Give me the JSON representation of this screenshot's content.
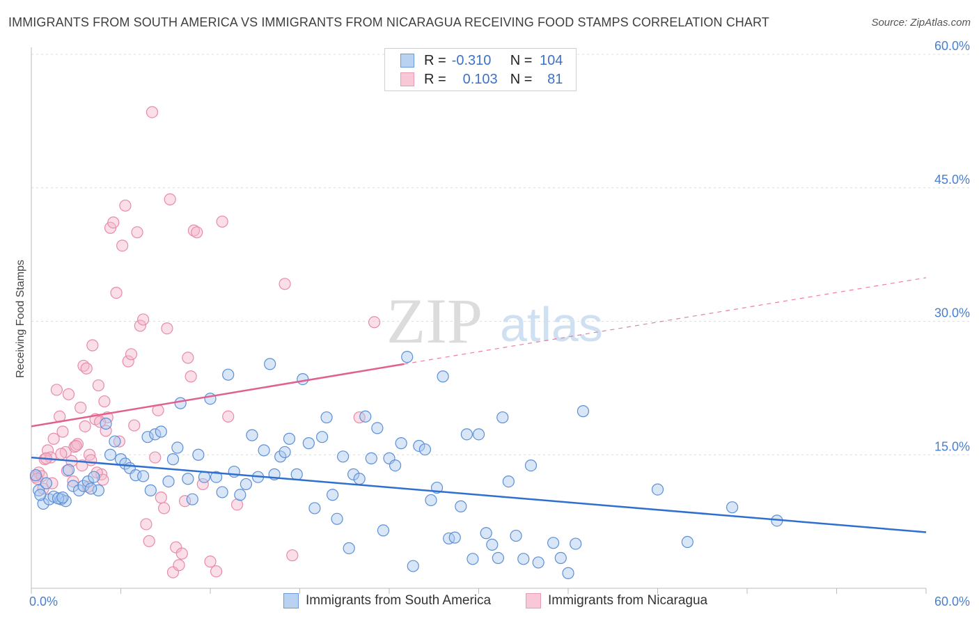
{
  "title": "IMMIGRANTS FROM SOUTH AMERICA VS IMMIGRANTS FROM NICARAGUA RECEIVING FOOD STAMPS CORRELATION CHART",
  "source": "Source: ZipAtlas.com",
  "watermark": {
    "zip": "ZIP",
    "atlas": "atlas"
  },
  "colors": {
    "blue_fill": "#a9c8ef",
    "blue_stroke": "#5b8fd6",
    "blue_line": "#2f6fcf",
    "pink_fill": "#f5b8cb",
    "pink_stroke": "#e88aa8",
    "pink_line": "#e0608e",
    "tick_text": "#4a7fcb",
    "grid": "#dcdcdc"
  },
  "legend": {
    "r_label": "R =",
    "n_label": "N =",
    "rows": [
      {
        "r": "-0.310",
        "n": "104",
        "color": "blue"
      },
      {
        "r": "0.103",
        "n": "81",
        "color": "pink"
      }
    ]
  },
  "chart_data": {
    "type": "scatter",
    "title": "IMMIGRANTS FROM SOUTH AMERICA VS IMMIGRANTS FROM NICARAGUA RECEIVING FOOD STAMPS CORRELATION CHART",
    "xlabel": "",
    "ylabel": "Receiving Food Stamps",
    "xlim": [
      0,
      60
    ],
    "ylim": [
      0,
      60
    ],
    "x_tick_labels": [
      "0.0%",
      "60.0%"
    ],
    "y_tick_labels": [
      "15.0%",
      "30.0%",
      "45.0%",
      "60.0%"
    ],
    "y_ticks": [
      15,
      30,
      45,
      60
    ],
    "grid": "horizontal dashed",
    "legend_placement": "bottom",
    "series": [
      {
        "name": "Immigrants from South America",
        "color": "blue",
        "trend": {
          "x": [
            0,
            60
          ],
          "y": [
            14.7,
            6.3
          ],
          "dashed_after": null
        },
        "points": [
          [
            0.5,
            11.0
          ],
          [
            0.8,
            9.5
          ],
          [
            1.2,
            10.0
          ],
          [
            1.5,
            10.3
          ],
          [
            2.0,
            10.0
          ],
          [
            2.3,
            9.8
          ],
          [
            2.5,
            13.3
          ],
          [
            2.8,
            11.5
          ],
          [
            3.2,
            11.0
          ],
          [
            3.5,
            11.5
          ],
          [
            3.8,
            12.0
          ],
          [
            4.2,
            12.5
          ],
          [
            4.5,
            11.0
          ],
          [
            5.0,
            18.5
          ],
          [
            5.3,
            15.0
          ],
          [
            5.6,
            16.5
          ],
          [
            6.0,
            14.5
          ],
          [
            6.3,
            14.0
          ],
          [
            6.6,
            13.5
          ],
          [
            7.0,
            12.7
          ],
          [
            7.5,
            12.6
          ],
          [
            7.8,
            17.0
          ],
          [
            8.0,
            11.0
          ],
          [
            8.3,
            17.3
          ],
          [
            8.7,
            17.6
          ],
          [
            9.2,
            12.0
          ],
          [
            9.5,
            14.5
          ],
          [
            9.8,
            15.8
          ],
          [
            10.0,
            20.8
          ],
          [
            10.5,
            12.3
          ],
          [
            10.8,
            10.0
          ],
          [
            11.2,
            15.0
          ],
          [
            11.6,
            12.5
          ],
          [
            12.0,
            21.3
          ],
          [
            12.4,
            12.5
          ],
          [
            12.8,
            10.8
          ],
          [
            13.2,
            24.0
          ],
          [
            13.6,
            13.1
          ],
          [
            14.0,
            10.5
          ],
          [
            14.4,
            11.7
          ],
          [
            14.8,
            17.2
          ],
          [
            15.2,
            12.5
          ],
          [
            15.6,
            15.5
          ],
          [
            16.0,
            25.2
          ],
          [
            16.3,
            12.8
          ],
          [
            16.7,
            14.8
          ],
          [
            17.0,
            15.3
          ],
          [
            17.3,
            16.8
          ],
          [
            17.8,
            12.8
          ],
          [
            18.2,
            23.5
          ],
          [
            18.6,
            16.3
          ],
          [
            19.0,
            9.0
          ],
          [
            19.5,
            17.0
          ],
          [
            19.8,
            19.2
          ],
          [
            20.2,
            10.5
          ],
          [
            20.5,
            7.8
          ],
          [
            20.9,
            14.8
          ],
          [
            21.3,
            4.5
          ],
          [
            21.6,
            12.8
          ],
          [
            22.0,
            12.3
          ],
          [
            22.4,
            19.3
          ],
          [
            22.8,
            14.6
          ],
          [
            23.2,
            18.0
          ],
          [
            23.6,
            6.5
          ],
          [
            24.0,
            14.6
          ],
          [
            24.4,
            13.8
          ],
          [
            24.8,
            16.3
          ],
          [
            25.2,
            26.0
          ],
          [
            25.6,
            2.5
          ],
          [
            26.0,
            16.0
          ],
          [
            26.4,
            15.6
          ],
          [
            26.8,
            9.9
          ],
          [
            27.2,
            11.3
          ],
          [
            27.6,
            23.8
          ],
          [
            28.0,
            5.6
          ],
          [
            28.4,
            5.7
          ],
          [
            28.8,
            9.2
          ],
          [
            29.2,
            17.3
          ],
          [
            29.6,
            3.3
          ],
          [
            30.0,
            17.3
          ],
          [
            30.5,
            6.2
          ],
          [
            30.9,
            4.9
          ],
          [
            31.3,
            3.4
          ],
          [
            31.6,
            19.2
          ],
          [
            32.0,
            12.0
          ],
          [
            32.5,
            5.9
          ],
          [
            33.0,
            3.3
          ],
          [
            33.5,
            13.8
          ],
          [
            34.0,
            2.9
          ],
          [
            35.0,
            5.1
          ],
          [
            35.5,
            3.4
          ],
          [
            36.0,
            1.7
          ],
          [
            36.5,
            5.0
          ],
          [
            37.0,
            19.9
          ],
          [
            42.0,
            11.1
          ],
          [
            44.0,
            5.2
          ],
          [
            47.0,
            9.1
          ],
          [
            50.0,
            7.6
          ],
          [
            0.3,
            12.7
          ],
          [
            0.6,
            10.5
          ],
          [
            1.0,
            11.8
          ],
          [
            1.8,
            10.1
          ],
          [
            2.1,
            10.2
          ],
          [
            4.0,
            11.2
          ]
        ]
      },
      {
        "name": "Immigrants from Nicaragua",
        "color": "pink",
        "trend": {
          "x": [
            0,
            25
          ],
          "y": [
            18.2,
            25.2
          ],
          "dashed_to": [
            60,
            34.9
          ]
        },
        "points": [
          [
            0.3,
            12.5
          ],
          [
            0.5,
            13.0
          ],
          [
            0.7,
            12.6
          ],
          [
            0.9,
            14.5
          ],
          [
            1.1,
            15.5
          ],
          [
            1.3,
            14.7
          ],
          [
            1.5,
            16.8
          ],
          [
            1.7,
            22.3
          ],
          [
            1.9,
            19.3
          ],
          [
            2.1,
            17.6
          ],
          [
            2.3,
            15.3
          ],
          [
            2.5,
            21.8
          ],
          [
            2.7,
            14.3
          ],
          [
            2.9,
            15.9
          ],
          [
            3.1,
            16.2
          ],
          [
            3.3,
            20.3
          ],
          [
            3.5,
            25.0
          ],
          [
            3.7,
            24.7
          ],
          [
            3.9,
            15.0
          ],
          [
            4.1,
            27.3
          ],
          [
            4.3,
            19.0
          ],
          [
            4.5,
            22.8
          ],
          [
            4.7,
            12.8
          ],
          [
            4.9,
            21.0
          ],
          [
            5.1,
            19.2
          ],
          [
            5.3,
            40.5
          ],
          [
            5.5,
            41.1
          ],
          [
            5.7,
            33.2
          ],
          [
            5.9,
            16.5
          ],
          [
            6.1,
            38.5
          ],
          [
            6.3,
            43.0
          ],
          [
            6.5,
            25.5
          ],
          [
            6.7,
            26.3
          ],
          [
            6.9,
            18.3
          ],
          [
            7.1,
            40.0
          ],
          [
            7.3,
            29.5
          ],
          [
            7.5,
            30.2
          ],
          [
            7.7,
            7.2
          ],
          [
            7.9,
            5.3
          ],
          [
            8.1,
            53.5
          ],
          [
            8.3,
            14.7
          ],
          [
            8.5,
            20.0
          ],
          [
            8.7,
            10.2
          ],
          [
            8.9,
            9.0
          ],
          [
            9.1,
            29.2
          ],
          [
            9.3,
            43.7
          ],
          [
            9.5,
            1.8
          ],
          [
            9.7,
            4.6
          ],
          [
            9.9,
            2.6
          ],
          [
            10.1,
            3.9
          ],
          [
            10.3,
            9.8
          ],
          [
            10.5,
            25.9
          ],
          [
            10.7,
            23.8
          ],
          [
            10.9,
            40.2
          ],
          [
            11.1,
            40.0
          ],
          [
            11.5,
            11.7
          ],
          [
            12.0,
            3.0
          ],
          [
            12.4,
            1.9
          ],
          [
            12.8,
            41.2
          ],
          [
            13.2,
            19.3
          ],
          [
            13.8,
            9.4
          ],
          [
            17.0,
            34.2
          ],
          [
            17.5,
            3.7
          ],
          [
            22.0,
            19.2
          ],
          [
            23.0,
            29.9
          ],
          [
            0.4,
            12.3
          ],
          [
            0.8,
            11.2
          ],
          [
            1.0,
            14.6
          ],
          [
            1.4,
            11.8
          ],
          [
            2.0,
            15.1
          ],
          [
            2.4,
            13.2
          ],
          [
            2.8,
            12.0
          ],
          [
            3.0,
            16.0
          ],
          [
            3.4,
            13.8
          ],
          [
            3.6,
            18.2
          ],
          [
            3.8,
            11.4
          ],
          [
            4.0,
            14.4
          ],
          [
            4.4,
            13.0
          ],
          [
            4.6,
            18.7
          ],
          [
            4.8,
            12.2
          ],
          [
            5.0,
            17.7
          ]
        ]
      }
    ],
    "bottom_legend": [
      "Immigrants from South America",
      "Immigrants from Nicaragua"
    ]
  }
}
